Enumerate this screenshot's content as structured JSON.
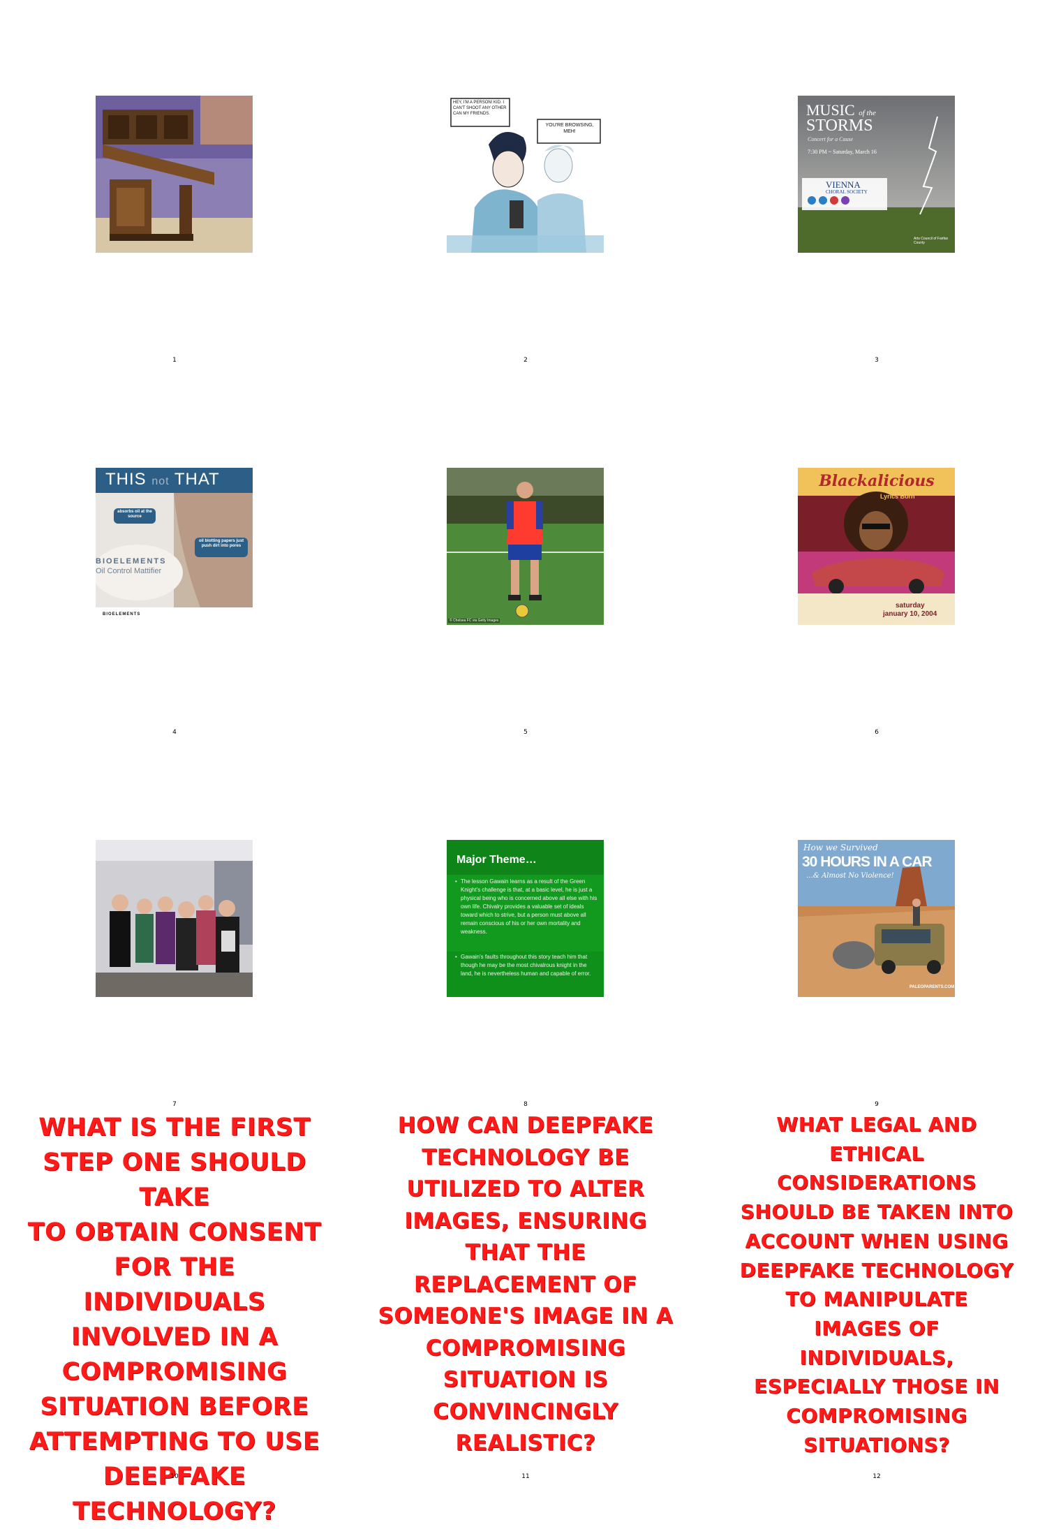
{
  "thumbnails": [
    {
      "number": "1",
      "description": "desk"
    },
    {
      "number": "2",
      "comic_bubble_left": "HEY, I'M A PERSON! KID. I CAN'T SHOOT ANY OTHER CAN MY FRIENDS.",
      "comic_bubble_right": "YOU'RE BROWSING, MEH!"
    },
    {
      "number": "3",
      "title_line1": "MUSIC",
      "title_small": "of the",
      "title_line2": "STORMS",
      "subtitle": "Concert for a Cause",
      "date_line": "7:30 PM ~ Saturday, March 16",
      "org_name": "VIENNA",
      "org_sub": "CHORAL SOCIETY",
      "sponsor": "Arts Council of Fairfax County"
    },
    {
      "number": "4",
      "banner_this": "THIS",
      "banner_not": "not",
      "banner_that": "THAT",
      "bubble1": "absorbs oil at the source",
      "bubble2": "oil blotting papers just push dirt into pores",
      "brand": "BIOELEMENTS",
      "product": "Oil Control Mattifier",
      "footer_brand": "BIOELEMENTS"
    },
    {
      "number": "5",
      "credit": "© Chelsea FC via Getty Images"
    },
    {
      "number": "6",
      "title": "Blackalicious",
      "subtitle": "Lyrics Born",
      "event_day": "saturday",
      "event_date": "january 10, 2004"
    },
    {
      "number": "7",
      "description": "group photo"
    },
    {
      "number": "8",
      "heading": "Major Theme…",
      "bullet1": "The lesson Gawain learns as a result of the Green Knight's challenge is that, at a basic level, he is just a physical being who is concerned above all else with his own life. Chivalry provides a valuable set of ideals toward which to strive, but a person must above all remain conscious of his or her own mortality and weakness.",
      "bullet2": "Gawain's faults throughout this story teach him that though he may be the most chivalrous knight in the land, he is nevertheless human and capable of error."
    },
    {
      "number": "9",
      "script_top": "How we Survived",
      "headline": "30 HOURS IN A CAR",
      "script_bottom": "…& Almost No Violence!",
      "watermark": "PALEOPARENTS.COM"
    }
  ],
  "captions": [
    {
      "number": "10",
      "lines": [
        "WHAT IS THE FIRST",
        "STEP ONE SHOULD TAKE",
        "TO OBTAIN CONSENT",
        "FOR THE INDIVIDUALS",
        "INVOLVED IN A",
        "COMPROMISING",
        "SITUATION BEFORE",
        "ATTEMPTING TO USE",
        "DEEPFAKE",
        "TECHNOLOGY?"
      ]
    },
    {
      "number": "11",
      "lines": [
        "HOW CAN DEEPFAKE",
        "TECHNOLOGY BE",
        "UTILIZED TO ALTER",
        "IMAGES, ENSURING",
        "THAT THE",
        "REPLACEMENT OF",
        "SOMEONE'S IMAGE IN A",
        "COMPROMISING",
        "SITUATION IS",
        "CONVINCINGLY",
        "REALISTIC?"
      ]
    },
    {
      "number": "12",
      "lines": [
        "WHAT LEGAL AND",
        "ETHICAL",
        "CONSIDERATIONS",
        "SHOULD BE TAKEN INTO",
        "ACCOUNT WHEN USING",
        "DEEPFAKE TECHNOLOGY",
        "TO MANIPULATE",
        "IMAGES OF",
        "INDIVIDUALS,",
        "ESPECIALLY THOSE IN",
        "COMPROMISING",
        "SITUATIONS?"
      ]
    }
  ]
}
